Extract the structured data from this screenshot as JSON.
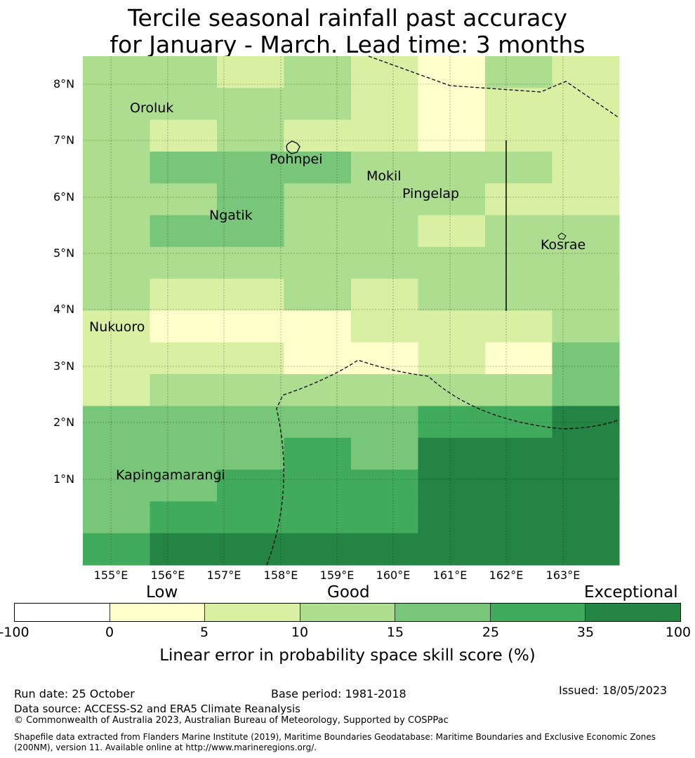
{
  "title": {
    "line1": "Tercile seasonal rainfall past accuracy",
    "line2": "for January - March. Lead time: 3 months"
  },
  "map": {
    "lat_labels": [
      "8°N",
      "7°N",
      "6°N",
      "5°N",
      "4°N",
      "3°N",
      "2°N",
      "1°N"
    ],
    "lon_labels": [
      "155°E",
      "156°E",
      "157°E",
      "158°E",
      "159°E",
      "160°E",
      "161°E",
      "162°E",
      "163°E"
    ],
    "places": [
      {
        "id": "oroluk",
        "name": "Oroluk"
      },
      {
        "id": "pohnpei",
        "name": "Pohnpei"
      },
      {
        "id": "mokil",
        "name": "Mokil"
      },
      {
        "id": "pingelap",
        "name": "Pingelap"
      },
      {
        "id": "ngatik",
        "name": "Ngatik"
      },
      {
        "id": "kosrae",
        "name": "Kosrae"
      },
      {
        "id": "nukuoro",
        "name": "Nukuoro"
      },
      {
        "id": "kapingamarangi",
        "name": "Kapingamarangi"
      }
    ],
    "palette": [
      "#ffffff",
      "#ffffcc",
      "#d9f0a3",
      "#addd8e",
      "#78c679",
      "#41ab5d",
      "#238443"
    ],
    "grid_cols": 8,
    "grid_rows": 16,
    "skill_class_rows": [
      [
        3,
        3,
        2,
        3,
        2,
        1,
        3,
        2
      ],
      [
        3,
        3,
        3,
        3,
        2,
        1,
        2,
        2
      ],
      [
        3,
        2,
        3,
        2,
        2,
        1,
        2,
        2
      ],
      [
        3,
        4,
        4,
        4,
        3,
        3,
        3,
        2
      ],
      [
        3,
        3,
        4,
        3,
        3,
        3,
        2,
        2
      ],
      [
        3,
        4,
        4,
        3,
        3,
        2,
        3,
        3
      ],
      [
        3,
        3,
        3,
        3,
        3,
        3,
        3,
        3
      ],
      [
        3,
        2,
        2,
        3,
        2,
        3,
        3,
        3
      ],
      [
        2,
        1,
        1,
        1,
        2,
        2,
        2,
        3
      ],
      [
        2,
        2,
        2,
        1,
        1,
        2,
        1,
        4
      ],
      [
        2,
        3,
        3,
        3,
        3,
        3,
        3,
        4
      ],
      [
        4,
        4,
        4,
        4,
        4,
        5,
        5,
        6
      ],
      [
        4,
        4,
        4,
        5,
        4,
        6,
        6,
        6
      ],
      [
        4,
        4,
        5,
        5,
        5,
        6,
        6,
        6
      ],
      [
        4,
        5,
        5,
        5,
        5,
        6,
        6,
        6
      ],
      [
        5,
        6,
        6,
        6,
        6,
        6,
        6,
        6
      ]
    ]
  },
  "colorbar": {
    "categories": [
      {
        "id": "low",
        "label": "Low"
      },
      {
        "id": "good",
        "label": "Good"
      },
      {
        "id": "exceptional",
        "label": "Exceptional"
      }
    ],
    "ticks": [
      "-100",
      "0",
      "5",
      "10",
      "15",
      "25",
      "35",
      "100"
    ],
    "label": "Linear error in probability space skill score (%)"
  },
  "footer": {
    "run_date": "Run date: 25 October",
    "base_period": "Base period: 1981-2018",
    "issued": "Issued: 18/05/2023",
    "data_source": "Data source: ACCESS-S2 and ERA5 Climate Reanalysis",
    "copyright": "© Commonwealth of Australia 2023, Australian Bureau of Meteorology, Supported by COSPPac",
    "shapefile_line1": "Shapefile data extracted from Flanders Marine Institute (2019), Maritime Boundaries Geodatabase: Maritime Boundaries and Exclusive Economic Zones",
    "shapefile_line2": "(200NM), version 11. Available online at http://www.marineregions.org/."
  }
}
